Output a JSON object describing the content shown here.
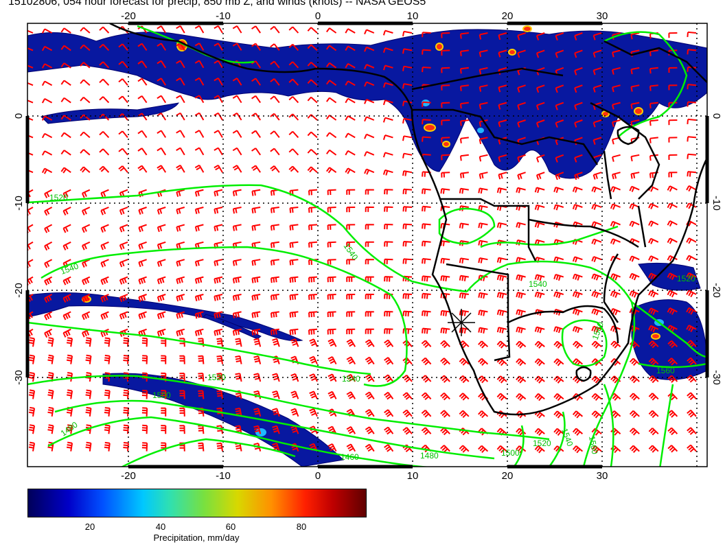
{
  "title": "15102806, 054 hour forecast for precip, 850 mb Z, and winds (knots) -- NASA GEOS5",
  "map": {
    "lon_ticks": [
      "-20",
      "-10",
      "0",
      "10",
      "20",
      "30"
    ],
    "lat_ticks": [
      "0",
      "-10",
      "-20",
      "-30"
    ],
    "contour_labels": [
      "1520",
      "1540",
      "1540",
      "1540",
      "1520",
      "1540",
      "1500",
      "1520",
      "1480",
      "1560",
      "1560",
      "1540",
      "1520",
      "1500",
      "1480",
      "1460",
      "1560"
    ],
    "colors": {
      "precip_low": "#000080",
      "precip_mid": "#0030d0",
      "precip_high": "#ff2000",
      "contour": "#00ff00",
      "wind_barb": "#ff0000",
      "coast": "#000000"
    }
  },
  "colorbar": {
    "ticks": [
      "20",
      "40",
      "60",
      "80"
    ],
    "label": "Precipitation, mm/day",
    "range": [
      0,
      100
    ]
  }
}
